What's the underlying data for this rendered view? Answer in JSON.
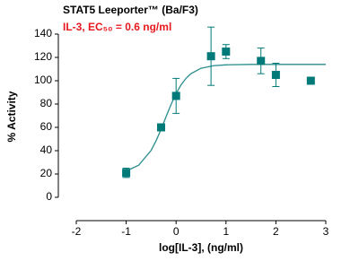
{
  "chart_data": {
    "type": "scatter",
    "title": "STAT5 Leeporter™ (Ba/F3)",
    "subtitle": "IL-3, EC₅₀ = 0.6 ng/ml",
    "x_label": "log[IL-3], (ng/ml)",
    "y_label": "% Activity",
    "xlim": [
      -2,
      3
    ],
    "xticks": [
      -2,
      -1,
      0,
      1,
      2,
      3
    ],
    "ylim": [
      0,
      140
    ],
    "yticks": [
      0,
      20,
      40,
      60,
      80,
      100,
      120,
      140
    ],
    "points": {
      "color": "#007a78",
      "x": [
        -1,
        -0.3,
        0,
        0.7,
        1,
        1.7,
        2,
        2.7
      ],
      "values": [
        21,
        60,
        87,
        121,
        125,
        117,
        105,
        100
      ],
      "errors": [
        4,
        2,
        15,
        25,
        6,
        11,
        10,
        null
      ]
    },
    "fit": {
      "color": "#2a8c8c",
      "x": [
        -1,
        -0.75,
        -0.5,
        -0.4,
        -0.3,
        -0.2,
        -0.1,
        0,
        0.1,
        0.2,
        0.3,
        0.5,
        0.75,
        1,
        1.5,
        2,
        2.5,
        3
      ],
      "values": [
        22.5,
        27.5,
        40.3,
        48.6,
        58.4,
        69.2,
        79.7,
        89,
        96.5,
        102.1,
        106.1,
        110.7,
        112.9,
        113.6,
        114,
        114,
        114,
        114
      ]
    }
  }
}
